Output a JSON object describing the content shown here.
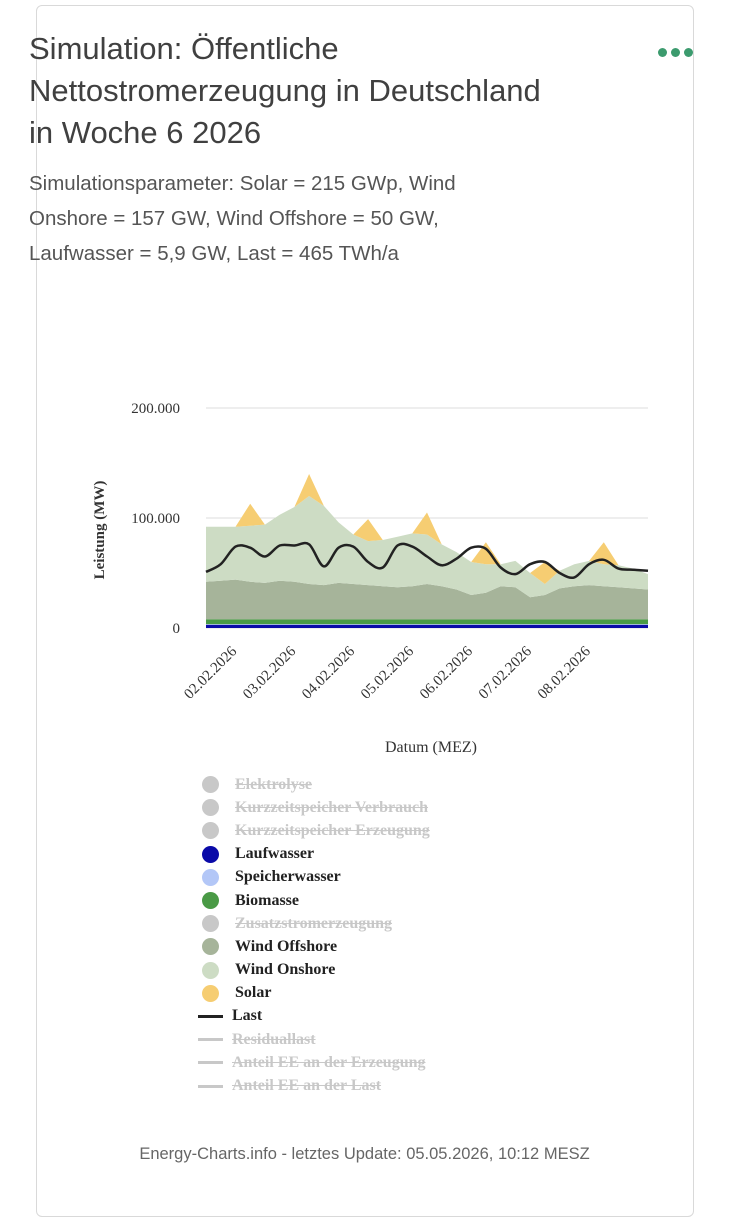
{
  "header": {
    "title": "Simulation: Öffentliche Nettostromerzeugung in Deutschland in Woche 6 2026",
    "subtitle": "Simulationsparameter: Solar = 215 GWp, Wind Onshore = 157 GW, Wind Offshore = 50 GW, Laufwasser = 5,9 GW, Last = 465 TWh/a",
    "menu_icon": "more-dots-icon"
  },
  "chart_data": {
    "type": "area",
    "title": "",
    "xlabel": "Datum (MEZ)",
    "ylabel": "Leistung (MW)",
    "ylim": [
      0,
      200000
    ],
    "yticks": [
      0,
      100000,
      200000
    ],
    "ytick_labels": [
      "0",
      "100.000",
      "200.000"
    ],
    "x_range": [
      0,
      7.5
    ],
    "xticks": [
      0.5,
      1.5,
      2.5,
      3.5,
      4.5,
      5.5,
      6.5
    ],
    "xtick_labels": [
      "02.02.2026",
      "03.02.2026",
      "04.02.2026",
      "05.02.2026",
      "06.02.2026",
      "07.02.2026",
      "08.02.2026"
    ],
    "stacked": true,
    "grid": true,
    "x": [
      0,
      0.25,
      0.5,
      0.75,
      1,
      1.25,
      1.5,
      1.75,
      2,
      2.25,
      2.5,
      2.75,
      3,
      3.25,
      3.5,
      3.75,
      4,
      4.25,
      4.5,
      4.75,
      5,
      5.25,
      5.5,
      5.75,
      6,
      6.25,
      6.5,
      6.75,
      7,
      7.25,
      7.5
    ],
    "series": [
      {
        "name": "Laufwasser",
        "color": "#0a0aa8",
        "values": [
          3000,
          3000,
          3000,
          3000,
          3000,
          3000,
          3000,
          3000,
          3000,
          3000,
          3000,
          3000,
          3000,
          3000,
          3000,
          3000,
          3000,
          3000,
          3000,
          3000,
          3000,
          3000,
          3000,
          3000,
          3000,
          3000,
          3000,
          3000,
          3000,
          3000,
          3000
        ]
      },
      {
        "name": "Speicherwasser",
        "color": "#b3c7f7",
        "values": [
          500,
          500,
          500,
          500,
          500,
          500,
          500,
          500,
          500,
          500,
          500,
          500,
          500,
          500,
          500,
          500,
          500,
          500,
          500,
          500,
          500,
          500,
          500,
          500,
          500,
          500,
          500,
          500,
          500,
          500,
          500
        ]
      },
      {
        "name": "Biomasse",
        "color": "#4a9a46",
        "values": [
          4500,
          4500,
          4500,
          4500,
          4500,
          4500,
          4500,
          4500,
          4500,
          4500,
          4500,
          4500,
          4500,
          4500,
          4500,
          4500,
          4500,
          4500,
          4500,
          4500,
          4500,
          4500,
          4500,
          4500,
          4500,
          4500,
          4500,
          4500,
          4500,
          4500,
          4500
        ]
      },
      {
        "name": "Wind Offshore",
        "color": "#a6b49a",
        "values": [
          34000,
          35000,
          36000,
          34000,
          33000,
          35000,
          34000,
          32000,
          31000,
          33000,
          32000,
          31000,
          30000,
          29000,
          30000,
          32000,
          30000,
          27000,
          22000,
          24000,
          30000,
          29000,
          20000,
          22000,
          28000,
          30000,
          31000,
          30000,
          29000,
          28000,
          27000
        ]
      },
      {
        "name": "Wind Onshore",
        "color": "#cddcc4",
        "values": [
          50000,
          49000,
          48000,
          51000,
          53000,
          60000,
          68000,
          80000,
          72000,
          55000,
          45000,
          40000,
          42000,
          46000,
          48000,
          45000,
          38000,
          34000,
          30000,
          26000,
          20000,
          24000,
          22000,
          10000,
          16000,
          20000,
          22000,
          20000,
          20000,
          18000,
          14000
        ]
      },
      {
        "name": "Solar",
        "color": "#f6cd72",
        "values": [
          0,
          0,
          0,
          20000,
          0,
          0,
          0,
          20000,
          0,
          0,
          0,
          20000,
          0,
          0,
          0,
          20000,
          0,
          0,
          0,
          20000,
          0,
          0,
          0,
          20000,
          0,
          0,
          0,
          20000,
          0,
          0,
          0
        ]
      },
      {
        "name": "Last",
        "color": "#222222",
        "type": "line",
        "values": [
          51000,
          58000,
          74000,
          73000,
          65000,
          75000,
          75000,
          76000,
          56000,
          73000,
          74000,
          60000,
          55000,
          75000,
          74000,
          65000,
          57000,
          63000,
          73000,
          72000,
          55000,
          49000,
          58000,
          60000,
          50000,
          46000,
          58000,
          62000,
          54000,
          53000,
          52000
        ]
      }
    ]
  },
  "legend": {
    "items": [
      {
        "label": "Elektrolyse",
        "color": "#c8c8c8",
        "shape": "dot",
        "active": false
      },
      {
        "label": "Kurzzeitspeicher Verbrauch",
        "color": "#c8c8c8",
        "shape": "dot",
        "active": false
      },
      {
        "label": "Kurzzeitspeicher Erzeugung",
        "color": "#c8c8c8",
        "shape": "dot",
        "active": false
      },
      {
        "label": "Laufwasser",
        "color": "#0a0aa8",
        "shape": "dot",
        "active": true
      },
      {
        "label": "Speicherwasser",
        "color": "#b3c7f7",
        "shape": "dot",
        "active": true
      },
      {
        "label": "Biomasse",
        "color": "#4a9a46",
        "shape": "dot",
        "active": true
      },
      {
        "label": "Zusatzstromerzeugung",
        "color": "#c8c8c8",
        "shape": "dot",
        "active": false
      },
      {
        "label": "Wind Offshore",
        "color": "#a6b49a",
        "shape": "dot",
        "active": true
      },
      {
        "label": "Wind Onshore",
        "color": "#cddcc4",
        "shape": "dot",
        "active": true
      },
      {
        "label": "Solar",
        "color": "#f6cd72",
        "shape": "dot",
        "active": true
      },
      {
        "label": "Last",
        "color": "#222222",
        "shape": "line",
        "active": true
      },
      {
        "label": "Residuallast",
        "color": "#c8c8c8",
        "shape": "line",
        "active": false
      },
      {
        "label": "Anteil EE an der Erzeugung",
        "color": "#c8c8c8",
        "shape": "line",
        "active": false
      },
      {
        "label": "Anteil EE an der Last",
        "color": "#c8c8c8",
        "shape": "line",
        "active": false
      }
    ]
  },
  "footer": {
    "text": "Energy-Charts.info - letztes Update: 05.05.2026, 10:12 MESZ"
  }
}
